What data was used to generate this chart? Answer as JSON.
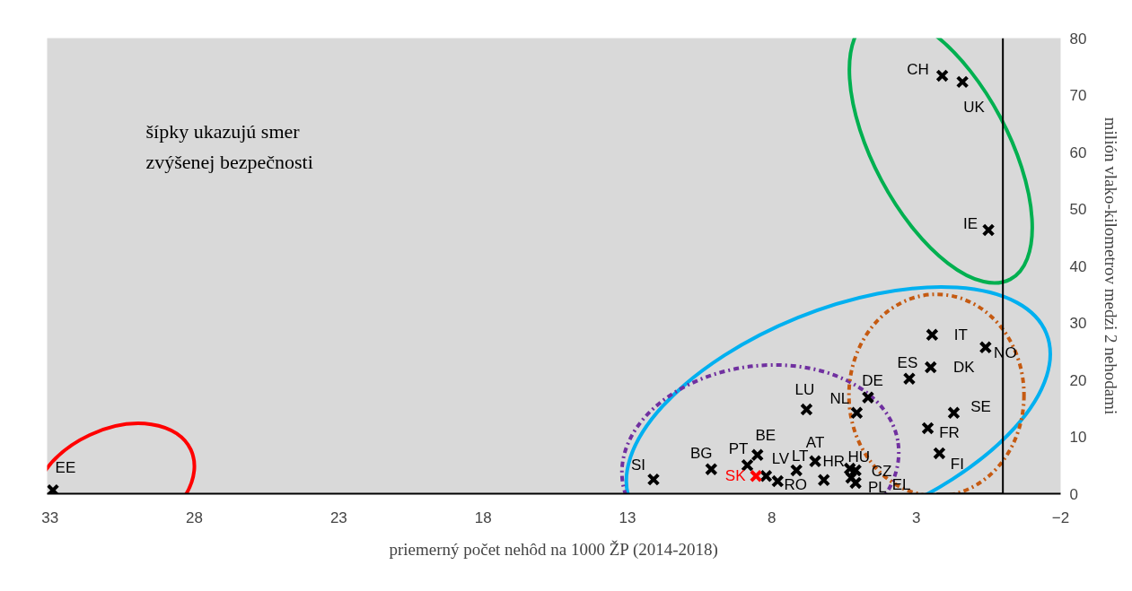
{
  "chart_data": {
    "type": "scatter",
    "xlabel": "priemerný počet nehôd na 1000 ŽP (2014-2018)",
    "ylabel": "milión vlako-kilometrov medzi 2 nehodami",
    "xlim": [
      33.1,
      -2
    ],
    "xticks": [
      33,
      28,
      23,
      18,
      13,
      8,
      3,
      -2
    ],
    "ylim": [
      0,
      80
    ],
    "yticks": [
      0,
      10,
      20,
      30,
      40,
      50,
      60,
      70,
      80
    ],
    "grid": false,
    "marker": "cross",
    "series": [
      {
        "color": "#000000",
        "x": [
          32.9,
          2.1,
          1.4,
          0.5,
          2.45,
          0.6,
          2.5,
          3.24,
          4.67,
          5.06,
          6.8,
          1.7,
          2.6,
          2.2,
          6.5,
          8.5,
          8.85,
          10.1,
          12.1,
          8.2,
          7.8,
          7.15,
          6.2,
          5.3,
          5.1,
          5.25,
          5.1
        ],
        "values": [
          0.6,
          73.4,
          72.3,
          46.3,
          27.9,
          25.7,
          22.2,
          20.2,
          16.9,
          14.2,
          14.8,
          14.2,
          11.5,
          7.1,
          5.7,
          6.8,
          5.0,
          4.3,
          2.5,
          3.1,
          2.2,
          4.1,
          2.4,
          4.4,
          4.1,
          2.8,
          1.9
        ]
      },
      {
        "color": "#ff0000",
        "x": [
          8.55
        ],
        "values": [
          3.1
        ]
      }
    ],
    "annotations": [
      "šípky ukazujú smer zvýšenej bezpečnosti",
      {
        "text": "EE",
        "x": 32.9,
        "y": 0.6
      },
      {
        "text": "CH",
        "x": 2.1,
        "y": 73.4
      },
      {
        "text": "UK",
        "x": 1.4,
        "y": 72.3
      },
      {
        "text": "IE",
        "x": 0.5,
        "y": 46.3
      },
      {
        "text": "IT",
        "x": 2.45,
        "y": 27.9
      },
      {
        "text": "NO",
        "x": 0.6,
        "y": 25.7
      },
      {
        "text": "DK",
        "x": 2.5,
        "y": 22.2
      },
      {
        "text": "ES",
        "x": 3.24,
        "y": 20.2
      },
      {
        "text": "DE",
        "x": 4.67,
        "y": 16.9
      },
      {
        "text": "NL",
        "x": 5.06,
        "y": 14.2
      },
      {
        "text": "LU",
        "x": 6.8,
        "y": 14.8
      },
      {
        "text": "SE",
        "x": 1.7,
        "y": 14.2
      },
      {
        "text": "FR",
        "x": 2.6,
        "y": 11.5
      },
      {
        "text": "FI",
        "x": 2.2,
        "y": 7.1
      },
      {
        "text": "AT",
        "x": 6.5,
        "y": 5.7
      },
      {
        "text": "BE",
        "x": 8.5,
        "y": 6.8
      },
      {
        "text": "PT",
        "x": 8.85,
        "y": 5.0
      },
      {
        "text": "BG",
        "x": 10.1,
        "y": 4.3
      },
      {
        "text": "SI",
        "x": 12.1,
        "y": 2.5
      },
      {
        "text": "LV",
        "x": 8.2,
        "y": 3.1
      },
      {
        "text": "RO",
        "x": 7.8,
        "y": 2.2
      },
      {
        "text": "LT",
        "x": 7.15,
        "y": 4.1
      },
      {
        "text": "HR",
        "x": 6.2,
        "y": 2.4
      },
      {
        "text": "HU",
        "x": 5.3,
        "y": 4.4
      },
      {
        "text": "CZ",
        "x": 5.1,
        "y": 4.1
      },
      {
        "text": "PL",
        "x": 5.25,
        "y": 2.8
      },
      {
        "text": "EL",
        "x": 5.1,
        "y": 1.9
      },
      {
        "text": "SK",
        "x": 8.55,
        "y": 3.1
      }
    ]
  }
}
